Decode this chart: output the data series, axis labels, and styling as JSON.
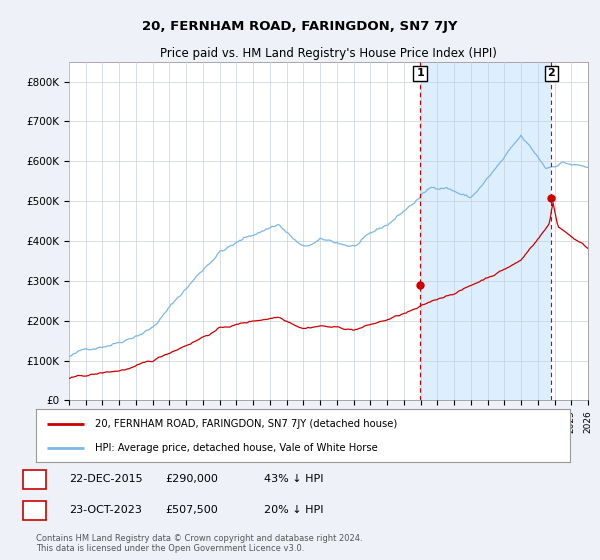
{
  "title": "20, FERNHAM ROAD, FARINGDON, SN7 7JY",
  "subtitle": "Price paid vs. HM Land Registry's House Price Index (HPI)",
  "ylim": [
    0,
    850000
  ],
  "yticks": [
    0,
    100000,
    200000,
    300000,
    400000,
    500000,
    600000,
    700000,
    800000
  ],
  "ytick_labels": [
    "£0",
    "£100K",
    "£200K",
    "£300K",
    "£400K",
    "£500K",
    "£600K",
    "£700K",
    "£800K"
  ],
  "hpi_color": "#7ab8e8",
  "price_color": "#cc0000",
  "vline_color": "#cc0000",
  "shade_color": "#ddeeff",
  "purchase1_year": 2015.97,
  "purchase1_price": 290000,
  "purchase1_label": "1",
  "purchase2_year": 2023.81,
  "purchase2_price": 507500,
  "purchase2_label": "2",
  "legend_line1": "20, FERNHAM ROAD, FARINGDON, SN7 7JY (detached house)",
  "legend_line2": "HPI: Average price, detached house, Vale of White Horse",
  "table_row1": [
    "1",
    "22-DEC-2015",
    "£290,000",
    "43% ↓ HPI"
  ],
  "table_row2": [
    "2",
    "23-OCT-2023",
    "£507,500",
    "20% ↓ HPI"
  ],
  "footnote": "Contains HM Land Registry data © Crown copyright and database right 2024.\nThis data is licensed under the Open Government Licence v3.0.",
  "background_color": "#eef2f8",
  "plot_bg_color": "#ffffff",
  "grid_color": "#c8d0dc",
  "xmin": 1995,
  "xmax": 2026
}
